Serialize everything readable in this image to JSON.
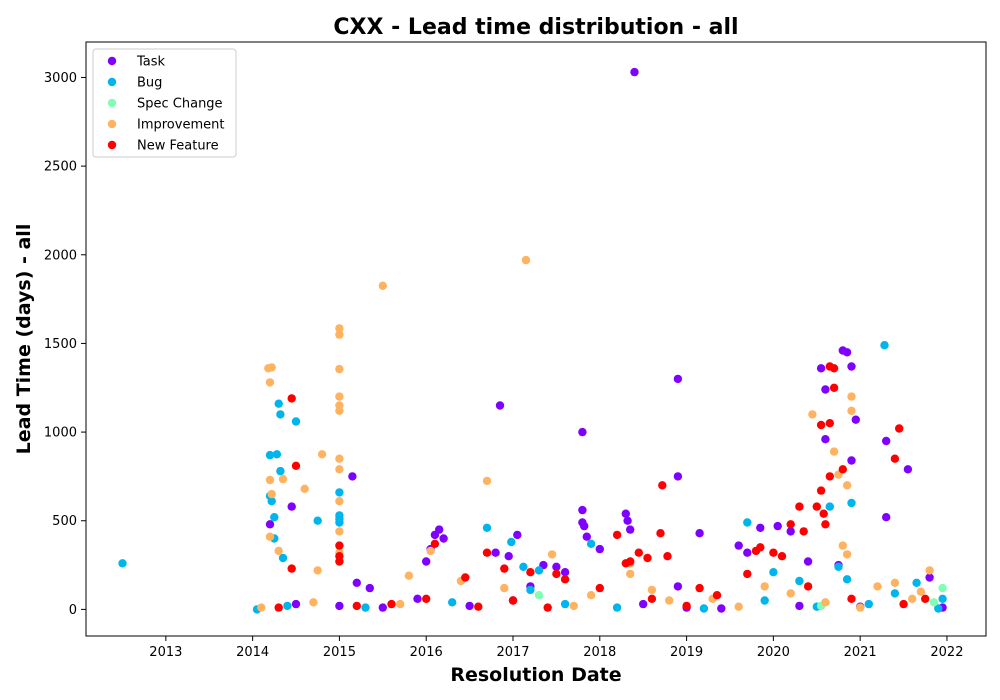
{
  "chart_data": {
    "type": "scatter",
    "title": "CXX - Lead time distribution - all",
    "xlabel": "Resolution Date",
    "ylabel": "Lead Time (days) - all",
    "x_type": "year",
    "xlim": [
      2012.08,
      2022.45
    ],
    "ylim": [
      -150,
      3200
    ],
    "xticks": [
      2013,
      2014,
      2015,
      2016,
      2017,
      2018,
      2019,
      2020,
      2021,
      2022
    ],
    "yticks": [
      0,
      500,
      1000,
      1500,
      2000,
      2500,
      3000
    ],
    "grid": false,
    "legend_position": "top-left",
    "series": [
      {
        "name": "Task",
        "color": "#8000ff",
        "points": [
          [
            2014.2,
            480
          ],
          [
            2014.45,
            580
          ],
          [
            2015.15,
            750
          ],
          [
            2015.2,
            150
          ],
          [
            2015.35,
            120
          ],
          [
            2015.9,
            60
          ],
          [
            2016.0,
            270
          ],
          [
            2016.05,
            340
          ],
          [
            2016.1,
            420
          ],
          [
            2016.15,
            450
          ],
          [
            2016.2,
            400
          ],
          [
            2016.8,
            320
          ],
          [
            2016.85,
            1150
          ],
          [
            2016.95,
            300
          ],
          [
            2017.05,
            420
          ],
          [
            2017.2,
            130
          ],
          [
            2017.35,
            250
          ],
          [
            2017.5,
            240
          ],
          [
            2017.6,
            210
          ],
          [
            2017.8,
            1000
          ],
          [
            2017.8,
            560
          ],
          [
            2017.8,
            490
          ],
          [
            2017.82,
            470
          ],
          [
            2017.85,
            410
          ],
          [
            2018.0,
            340
          ],
          [
            2018.3,
            540
          ],
          [
            2018.32,
            500
          ],
          [
            2018.35,
            450
          ],
          [
            2018.4,
            3030
          ],
          [
            2018.9,
            1300
          ],
          [
            2018.9,
            750
          ],
          [
            2018.9,
            130
          ],
          [
            2019.15,
            430
          ],
          [
            2019.6,
            360
          ],
          [
            2019.7,
            320
          ],
          [
            2019.85,
            460
          ],
          [
            2020.05,
            470
          ],
          [
            2020.2,
            440
          ],
          [
            2020.4,
            270
          ],
          [
            2020.55,
            1360
          ],
          [
            2020.6,
            1240
          ],
          [
            2020.6,
            960
          ],
          [
            2020.75,
            250
          ],
          [
            2020.8,
            1460
          ],
          [
            2020.85,
            1450
          ],
          [
            2020.9,
            1370
          ],
          [
            2020.9,
            840
          ],
          [
            2020.95,
            1070
          ],
          [
            2021.3,
            950
          ],
          [
            2021.3,
            520
          ],
          [
            2021.55,
            790
          ],
          [
            2021.8,
            180
          ],
          [
            2021.95,
            10
          ],
          [
            2014.5,
            30
          ],
          [
            2015.0,
            20
          ],
          [
            2015.5,
            10
          ],
          [
            2016.5,
            20
          ],
          [
            2017.0,
            50
          ],
          [
            2018.5,
            30
          ],
          [
            2019.0,
            10
          ],
          [
            2019.4,
            5
          ],
          [
            2020.3,
            20
          ],
          [
            2021.0,
            15
          ]
        ]
      },
      {
        "name": "Bug",
        "color": "#00b5eb",
        "points": [
          [
            2012.5,
            260
          ],
          [
            2014.05,
            0
          ],
          [
            2014.2,
            870
          ],
          [
            2014.2,
            640
          ],
          [
            2014.22,
            610
          ],
          [
            2014.25,
            520
          ],
          [
            2014.25,
            400
          ],
          [
            2014.28,
            875
          ],
          [
            2014.3,
            1160
          ],
          [
            2014.32,
            1100
          ],
          [
            2014.32,
            780
          ],
          [
            2014.35,
            290
          ],
          [
            2014.5,
            1060
          ],
          [
            2014.75,
            500
          ],
          [
            2015.0,
            660
          ],
          [
            2015.0,
            530
          ],
          [
            2015.0,
            510
          ],
          [
            2015.0,
            490
          ],
          [
            2016.7,
            460
          ],
          [
            2016.98,
            380
          ],
          [
            2017.12,
            240
          ],
          [
            2017.2,
            110
          ],
          [
            2017.3,
            220
          ],
          [
            2017.9,
            370
          ],
          [
            2019.7,
            490
          ],
          [
            2019.9,
            50
          ],
          [
            2020.0,
            210
          ],
          [
            2020.3,
            160
          ],
          [
            2020.65,
            580
          ],
          [
            2020.75,
            240
          ],
          [
            2020.85,
            170
          ],
          [
            2020.9,
            600
          ],
          [
            2021.28,
            1490
          ],
          [
            2021.4,
            90
          ],
          [
            2021.65,
            150
          ],
          [
            2021.95,
            60
          ],
          [
            2014.4,
            20
          ],
          [
            2015.3,
            10
          ],
          [
            2016.3,
            40
          ],
          [
            2017.6,
            30
          ],
          [
            2018.2,
            10
          ],
          [
            2019.2,
            5
          ],
          [
            2020.5,
            15
          ],
          [
            2021.1,
            30
          ],
          [
            2021.9,
            5
          ]
        ]
      },
      {
        "name": "Spec Change",
        "color": "#80ffb4",
        "points": [
          [
            2021.95,
            120
          ],
          [
            2020.55,
            20
          ],
          [
            2017.3,
            80
          ],
          [
            2021.85,
            40
          ]
        ]
      },
      {
        "name": "Improvement",
        "color": "#ffb360",
        "points": [
          [
            2014.18,
            1360
          ],
          [
            2014.22,
            1365
          ],
          [
            2014.2,
            1280
          ],
          [
            2014.2,
            730
          ],
          [
            2014.22,
            650
          ],
          [
            2014.2,
            410
          ],
          [
            2014.35,
            735
          ],
          [
            2014.3,
            330
          ],
          [
            2014.6,
            680
          ],
          [
            2014.8,
            875
          ],
          [
            2014.75,
            220
          ],
          [
            2015.0,
            1585
          ],
          [
            2015.0,
            1550
          ],
          [
            2015.0,
            1355
          ],
          [
            2015.0,
            1200
          ],
          [
            2015.0,
            1150
          ],
          [
            2015.0,
            1120
          ],
          [
            2015.0,
            850
          ],
          [
            2015.0,
            790
          ],
          [
            2015.0,
            610
          ],
          [
            2015.0,
            440
          ],
          [
            2015.0,
            320
          ],
          [
            2015.5,
            1825
          ],
          [
            2016.05,
            330
          ],
          [
            2016.7,
            725
          ],
          [
            2017.15,
            1970
          ],
          [
            2017.45,
            310
          ],
          [
            2018.35,
            260
          ],
          [
            2018.35,
            200
          ],
          [
            2019.9,
            130
          ],
          [
            2020.45,
            1100
          ],
          [
            2020.7,
            890
          ],
          [
            2020.75,
            760
          ],
          [
            2020.8,
            360
          ],
          [
            2020.85,
            310
          ],
          [
            2020.9,
            1200
          ],
          [
            2020.9,
            1120
          ],
          [
            2020.85,
            700
          ],
          [
            2021.2,
            130
          ],
          [
            2021.4,
            150
          ],
          [
            2021.8,
            220
          ],
          [
            2015.8,
            190
          ],
          [
            2016.4,
            160
          ],
          [
            2017.9,
            80
          ],
          [
            2018.6,
            110
          ],
          [
            2019.3,
            60
          ],
          [
            2020.2,
            90
          ],
          [
            2021.6,
            60
          ],
          [
            2014.1,
            10
          ],
          [
            2014.7,
            40
          ],
          [
            2015.7,
            30
          ],
          [
            2016.9,
            120
          ],
          [
            2017.7,
            20
          ],
          [
            2018.8,
            50
          ],
          [
            2019.6,
            15
          ],
          [
            2020.6,
            40
          ],
          [
            2021.0,
            10
          ],
          [
            2021.7,
            100
          ]
        ]
      },
      {
        "name": "New Feature",
        "color": "#ff0000",
        "points": [
          [
            2014.45,
            1190
          ],
          [
            2014.5,
            810
          ],
          [
            2014.45,
            230
          ],
          [
            2015.0,
            360
          ],
          [
            2015.0,
            300
          ],
          [
            2015.0,
            270
          ],
          [
            2016.1,
            370
          ],
          [
            2016.45,
            180
          ],
          [
            2016.7,
            320
          ],
          [
            2016.9,
            230
          ],
          [
            2017.2,
            210
          ],
          [
            2017.5,
            200
          ],
          [
            2017.6,
            170
          ],
          [
            2018.2,
            420
          ],
          [
            2018.3,
            260
          ],
          [
            2018.35,
            270
          ],
          [
            2018.45,
            320
          ],
          [
            2018.55,
            290
          ],
          [
            2018.7,
            430
          ],
          [
            2018.72,
            700
          ],
          [
            2018.78,
            300
          ],
          [
            2019.15,
            120
          ],
          [
            2019.35,
            80
          ],
          [
            2019.7,
            200
          ],
          [
            2019.8,
            330
          ],
          [
            2019.85,
            350
          ],
          [
            2020.0,
            320
          ],
          [
            2020.1,
            300
          ],
          [
            2020.2,
            480
          ],
          [
            2020.3,
            580
          ],
          [
            2020.35,
            440
          ],
          [
            2020.5,
            580
          ],
          [
            2020.55,
            670
          ],
          [
            2020.58,
            540
          ],
          [
            2020.6,
            480
          ],
          [
            2020.65,
            1050
          ],
          [
            2020.55,
            1040
          ],
          [
            2020.65,
            1370
          ],
          [
            2020.7,
            1360
          ],
          [
            2020.7,
            1250
          ],
          [
            2020.65,
            750
          ],
          [
            2020.8,
            790
          ],
          [
            2021.45,
            1020
          ],
          [
            2021.4,
            850
          ],
          [
            2021.75,
            60
          ],
          [
            2014.3,
            10
          ],
          [
            2015.2,
            20
          ],
          [
            2015.6,
            30
          ],
          [
            2016.0,
            60
          ],
          [
            2016.6,
            15
          ],
          [
            2017.0,
            50
          ],
          [
            2017.4,
            10
          ],
          [
            2018.0,
            120
          ],
          [
            2018.6,
            60
          ],
          [
            2019.0,
            20
          ],
          [
            2020.4,
            130
          ],
          [
            2020.9,
            60
          ],
          [
            2021.5,
            30
          ]
        ]
      }
    ]
  }
}
